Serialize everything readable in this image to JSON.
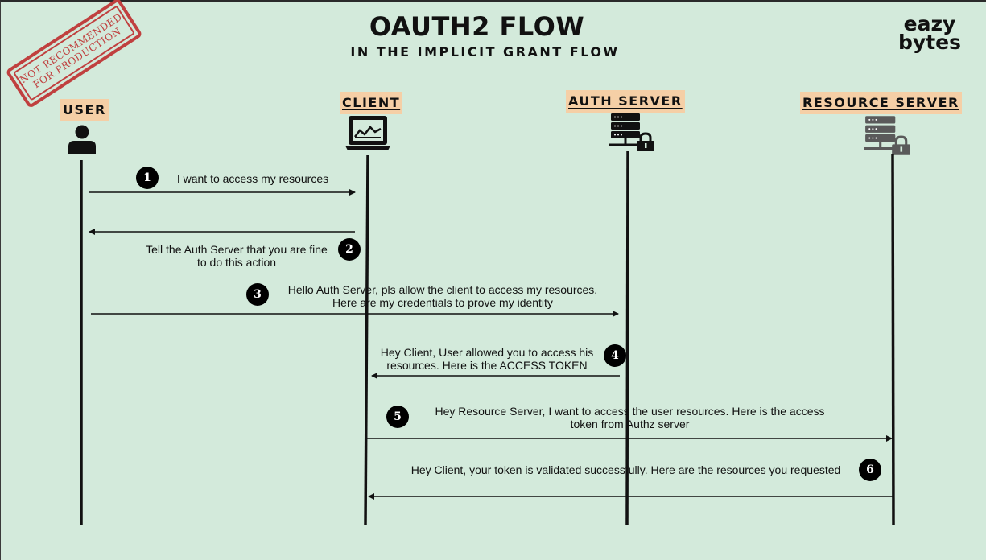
{
  "title": "OAUTH2 FLOW",
  "subtitle": "IN THE IMPLICIT GRANT FLOW",
  "logo": {
    "line1": "eazy",
    "line2": "bytes"
  },
  "stamp": {
    "line1": "NOT RECOMMENDED",
    "line2": "FOR PRODUCTION"
  },
  "actors": {
    "user": {
      "label": "USER",
      "icon": "user-icon"
    },
    "client": {
      "label": "CLIENT",
      "icon": "laptop-icon"
    },
    "auth_server": {
      "label": "AUTH SERVER",
      "icon": "server-lock-icon"
    },
    "resource_server": {
      "label": "RESOURCE SERVER",
      "icon": "server-lock-icon"
    }
  },
  "messages": [
    {
      "step": "1",
      "from": "USER",
      "to": "CLIENT",
      "line1": "I want to access my resources",
      "line2": ""
    },
    {
      "step": "2",
      "from": "CLIENT",
      "to": "USER",
      "line1": "Tell the Auth Server that you are fine",
      "line2": "to do this action"
    },
    {
      "step": "3",
      "from": "USER",
      "to": "AUTH SERVER",
      "line1": "Hello Auth Server, pls allow the client to access my resources.",
      "line2": "Here  are my credentials to prove my identity"
    },
    {
      "step": "4",
      "from": "AUTH SERVER",
      "to": "CLIENT",
      "line1": "Hey Client, User allowed you to access his",
      "line2": "resources. Here is the ACCESS TOKEN"
    },
    {
      "step": "5",
      "from": "CLIENT",
      "to": "RESOURCE SERVER",
      "line1": "Hey Resource Server,  I want to access the user resources. Here is the access",
      "line2": "token from Authz server"
    },
    {
      "step": "6",
      "from": "RESOURCE SERVER",
      "to": "CLIENT",
      "line1": "Hey Client, your token is validated successfully.   Here are the resources you requested",
      "line2": ""
    }
  ],
  "colors": {
    "background": "#d3eadb",
    "actor_label_bg": "#f5cfa6",
    "stamp": "#c0403f",
    "line": "#111111"
  }
}
